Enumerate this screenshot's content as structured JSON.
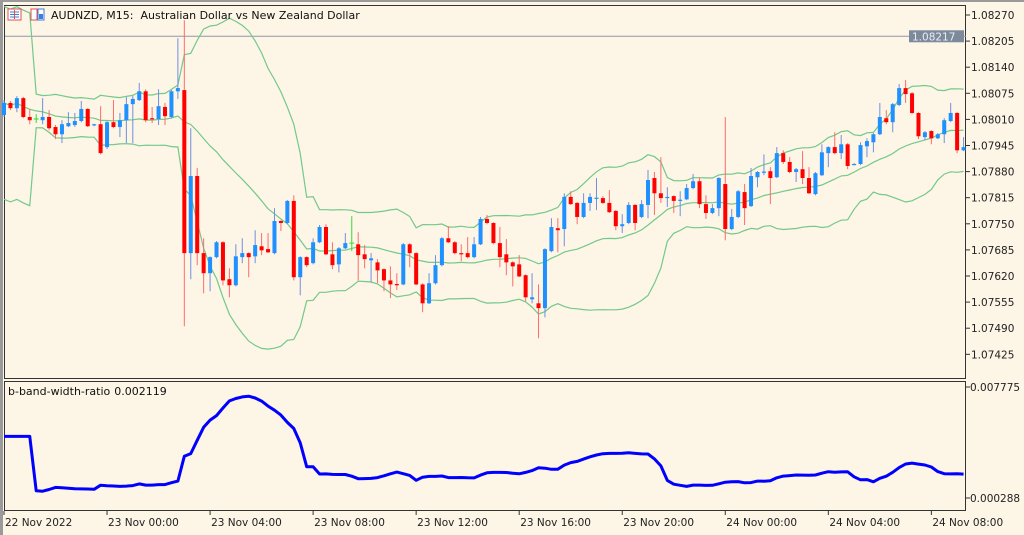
{
  "window": {
    "symbol_title": "AUDNZD, M15:  Australian Dollar vs New Zealand Dollar",
    "icons": [
      "chart-list-icon",
      "data-window-icon"
    ]
  },
  "colors": {
    "background": "#fdf5e6",
    "bull_body": "#1e90ff",
    "bear_body": "#ff0000",
    "bull_wick": "#6f8fe0",
    "bear_wick": "#ff6b6b",
    "doji": "#33dd33",
    "bands": "#72c98a",
    "indicator_line": "#0000ff",
    "hline": "#8f9aa8",
    "hline_label_bg": "#7d8a9c"
  },
  "chart_data": [
    {
      "type": "candlestick",
      "timeframe": "M15",
      "price_axis": {
        "ticks": [
          "1.08270",
          "1.08205",
          "1.08140",
          "1.08075",
          "1.08010",
          "1.07945",
          "1.07880",
          "1.07815",
          "1.07750",
          "1.07685",
          "1.07620",
          "1.07555",
          "1.07490",
          "1.07425"
        ],
        "range": [
          1.0738,
          1.083
        ]
      },
      "horizontal_line": {
        "value": "1.08217"
      },
      "overlay": {
        "indicator": "Bollinger Bands",
        "period": 20,
        "deviations": 2
      },
      "time_axis": {
        "labels": [
          "22 Nov 2022",
          "23 Nov 00:00",
          "23 Nov 04:00",
          "23 Nov 08:00",
          "23 Nov 12:00",
          "23 Nov 16:00",
          "23 Nov 20:00",
          "24 Nov 00:00",
          "24 Nov 04:00",
          "24 Nov 08:00"
        ],
        "label_bar_index": [
          0,
          16,
          32,
          48,
          64,
          80,
          96,
          112,
          128,
          144
        ]
      },
      "ohlc_columns": [
        "open",
        "high",
        "low",
        "close"
      ],
      "ohlc": [
        [
          1.08021,
          1.08058,
          1.08016,
          1.08051
        ],
        [
          1.08051,
          1.08056,
          1.08033,
          1.08038
        ],
        [
          1.08038,
          1.08068,
          1.08028,
          1.08063
        ],
        [
          1.08063,
          1.08066,
          1.08013,
          1.08016
        ],
        [
          1.08016,
          1.08036,
          1.07998,
          1.08008
        ],
        [
          1.08011,
          1.08023,
          1.08001,
          1.08011
        ],
        [
          1.08008,
          1.08063,
          1.07998,
          1.08016
        ],
        [
          1.08016,
          1.08033,
          1.07983,
          1.07988
        ],
        [
          1.07991,
          1.07996,
          1.07961,
          1.07973
        ],
        [
          1.07973,
          1.08008,
          1.07951,
          1.07998
        ],
        [
          1.07993,
          1.08028,
          1.07991,
          1.08001
        ],
        [
          1.07996,
          1.08026,
          1.07991,
          1.08006
        ],
        [
          1.08006,
          1.08056,
          1.08003,
          1.08036
        ],
        [
          1.08036,
          1.08038,
          1.07991,
          1.07993
        ],
        [
          1.07996,
          1.07999,
          1.07993,
          1.07998
        ],
        [
          1.07998,
          1.08043,
          1.07923,
          1.07926
        ],
        [
          1.07941,
          1.08006,
          1.07936,
          1.08003
        ],
        [
          1.08003,
          1.08058,
          1.07988,
          1.07991
        ],
        [
          1.07991,
          1.08026,
          1.07966,
          1.08008
        ],
        [
          1.08008,
          1.08066,
          1.07951,
          1.08048
        ],
        [
          1.08048,
          1.08068,
          1.07951,
          1.08061
        ],
        [
          1.08058,
          1.08101,
          1.08056,
          1.0808
        ],
        [
          1.0808,
          1.08085,
          1.08003,
          1.08008
        ],
        [
          1.08013,
          1.08041,
          1.08001,
          1.08011
        ],
        [
          1.08011,
          1.08085,
          1.07996,
          1.08043
        ],
        [
          1.08041,
          1.08051,
          1.07996,
          1.08018
        ],
        [
          1.08016,
          1.08083,
          1.08013,
          1.0808
        ],
        [
          1.0808,
          1.08212,
          1.08061,
          1.08088
        ],
        [
          1.08083,
          1.08257,
          1.07495,
          1.07677
        ],
        [
          1.07677,
          1.07988,
          1.07612,
          1.07869
        ],
        [
          1.07869,
          1.07889,
          1.07647,
          1.07677
        ],
        [
          1.07677,
          1.07714,
          1.07577,
          1.07627
        ],
        [
          1.07627,
          1.07669,
          1.07582,
          1.07667
        ],
        [
          1.07667,
          1.07707,
          1.07664,
          1.07704
        ],
        [
          1.07704,
          1.07707,
          1.07597,
          1.07609
        ],
        [
          1.07612,
          1.07639,
          1.07567,
          1.07597
        ],
        [
          1.07597,
          1.07699,
          1.07594,
          1.07669
        ],
        [
          1.07667,
          1.07714,
          1.07652,
          1.07677
        ],
        [
          1.07677,
          1.07679,
          1.07617,
          1.07667
        ],
        [
          1.07669,
          1.07734,
          1.07652,
          1.07697
        ],
        [
          1.07694,
          1.07727,
          1.07672,
          1.07684
        ],
        [
          1.07687,
          1.07727,
          1.07677,
          1.07679
        ],
        [
          1.07677,
          1.07789,
          1.07674,
          1.07757
        ],
        [
          1.07757,
          1.07759,
          1.07732,
          1.07752
        ],
        [
          1.07752,
          1.07809,
          1.07749,
          1.07807
        ],
        [
          1.07807,
          1.07821,
          1.07609,
          1.07617
        ],
        [
          1.07617,
          1.07669,
          1.07572,
          1.07667
        ],
        [
          1.07667,
          1.07669,
          1.07642,
          1.07647
        ],
        [
          1.07652,
          1.07714,
          1.07649,
          1.07704
        ],
        [
          1.07704,
          1.07747,
          1.07702,
          1.07742
        ],
        [
          1.07742,
          1.07749,
          1.07672,
          1.07674
        ],
        [
          1.07674,
          1.07704,
          1.07637,
          1.07647
        ],
        [
          1.07649,
          1.07692,
          1.07629,
          1.07689
        ],
        [
          1.07689,
          1.07727,
          1.07687,
          1.07702
        ],
        [
          1.07702,
          1.07769,
          1.07682,
          1.07702
        ],
        [
          1.07699,
          1.07729,
          1.07609,
          1.07672
        ],
        [
          1.07674,
          1.07697,
          1.07639,
          1.07662
        ],
        [
          1.07659,
          1.07677,
          1.07604,
          1.07664
        ],
        [
          1.07654,
          1.07662,
          1.07602,
          1.07634
        ],
        [
          1.07637,
          1.07639,
          1.07582,
          1.07609
        ],
        [
          1.07609,
          1.07644,
          1.07565,
          1.07599
        ],
        [
          1.076,
          1.07627,
          1.07585,
          1.07599
        ],
        [
          1.07599,
          1.07702,
          1.07597,
          1.07699
        ],
        [
          1.07699,
          1.07702,
          1.07642,
          1.07677
        ],
        [
          1.07677,
          1.07679,
          1.07597,
          1.07599
        ],
        [
          1.07599,
          1.07602,
          1.0753,
          1.07552
        ],
        [
          1.07552,
          1.07627,
          1.0755,
          1.07602
        ],
        [
          1.07602,
          1.07672,
          1.07599,
          1.07647
        ],
        [
          1.07647,
          1.07717,
          1.07644,
          1.07714
        ],
        [
          1.07714,
          1.07744,
          1.07702,
          1.07704
        ],
        [
          1.07704,
          1.07707,
          1.07674,
          1.07677
        ],
        [
          1.07677,
          1.07699,
          1.07657,
          1.07674
        ],
        [
          1.07677,
          1.07717,
          1.07664,
          1.07667
        ],
        [
          1.07667,
          1.07717,
          1.07664,
          1.07699
        ],
        [
          1.07699,
          1.07767,
          1.07697,
          1.07762
        ],
        [
          1.07762,
          1.07772,
          1.07749,
          1.07752
        ],
        [
          1.07752,
          1.07754,
          1.07699,
          1.07702
        ],
        [
          1.07702,
          1.07742,
          1.07642,
          1.07667
        ],
        [
          1.07674,
          1.07712,
          1.07622,
          1.07654
        ],
        [
          1.07654,
          1.07657,
          1.07594,
          1.07644
        ],
        [
          1.07649,
          1.07672,
          1.07617,
          1.07619
        ],
        [
          1.07622,
          1.07624,
          1.07557,
          1.07567
        ],
        [
          1.07562,
          1.07627,
          1.07552,
          1.07567
        ],
        [
          1.07552,
          1.07599,
          1.07465,
          1.0754
        ],
        [
          1.0754,
          1.07689,
          1.07517,
          1.07687
        ],
        [
          1.07682,
          1.07764,
          1.07679,
          1.07742
        ],
        [
          1.07739,
          1.07764,
          1.07679,
          1.07734
        ],
        [
          1.07737,
          1.07826,
          1.07694,
          1.07817
        ],
        [
          1.07817,
          1.07831,
          1.07797,
          1.07799
        ],
        [
          1.07802,
          1.07804,
          1.07749,
          1.07767
        ],
        [
          1.07767,
          1.07826,
          1.07764,
          1.07802
        ],
        [
          1.07802,
          1.07826,
          1.07782,
          1.07817
        ],
        [
          1.07814,
          1.07864,
          1.07784,
          1.07815
        ],
        [
          1.07814,
          1.07819,
          1.07799,
          1.07802
        ],
        [
          1.07802,
          1.07834,
          1.07777,
          1.07779
        ],
        [
          1.07782,
          1.07784,
          1.07734,
          1.07744
        ],
        [
          1.07744,
          1.07774,
          1.07727,
          1.07749
        ],
        [
          1.07752,
          1.07804,
          1.07749,
          1.07797
        ],
        [
          1.07797,
          1.07799,
          1.07734,
          1.07752
        ],
        [
          1.07767,
          1.07809,
          1.07764,
          1.07799
        ],
        [
          1.07797,
          1.07884,
          1.07764,
          1.07859
        ],
        [
          1.07864,
          1.07879,
          1.07772,
          1.07826
        ],
        [
          1.07826,
          1.07916,
          1.07802,
          1.07814
        ],
        [
          1.07816,
          1.07841,
          1.07792,
          1.07817
        ],
        [
          1.07819,
          1.07821,
          1.07777,
          1.07807
        ],
        [
          1.07809,
          1.07831,
          1.07769,
          1.0781
        ],
        [
          1.07811,
          1.07849,
          1.07809,
          1.07839
        ],
        [
          1.07839,
          1.07874,
          1.07836,
          1.07856
        ],
        [
          1.07856,
          1.07866,
          1.07789,
          1.07799
        ],
        [
          1.07799,
          1.07821,
          1.07762,
          1.07777
        ],
        [
          1.07777,
          1.07799,
          1.07774,
          1.07789
        ],
        [
          1.07789,
          1.07866,
          1.07769,
          1.07864
        ],
        [
          1.07849,
          1.08016,
          1.07709,
          1.07737
        ],
        [
          1.07737,
          1.07787,
          1.07734,
          1.07767
        ],
        [
          1.07767,
          1.07834,
          1.07764,
          1.07831
        ],
        [
          1.07829,
          1.07849,
          1.07747,
          1.07789
        ],
        [
          1.07794,
          1.07889,
          1.07792,
          1.07869
        ],
        [
          1.07866,
          1.07881,
          1.07841,
          1.07879
        ],
        [
          1.07879,
          1.07923,
          1.07871,
          1.0788
        ],
        [
          1.07881,
          1.07891,
          1.07799,
          1.07864
        ],
        [
          1.07866,
          1.07941,
          1.07864,
          1.07926
        ],
        [
          1.07926,
          1.07933,
          1.07899,
          1.07904
        ],
        [
          1.07904,
          1.07916,
          1.07876,
          1.07879
        ],
        [
          1.07879,
          1.07889,
          1.07854,
          1.07886
        ],
        [
          1.07886,
          1.07931,
          1.07849,
          1.07864
        ],
        [
          1.07864,
          1.07891,
          1.07824,
          1.07826
        ],
        [
          1.07824,
          1.07879,
          1.07821,
          1.07876
        ],
        [
          1.07871,
          1.07948,
          1.07869,
          1.07928
        ],
        [
          1.07926,
          1.07943,
          1.07891,
          1.07941
        ],
        [
          1.07941,
          1.07978,
          1.07923,
          1.07926
        ],
        [
          1.07926,
          1.07971,
          1.07911,
          1.07948
        ],
        [
          1.07948,
          1.07951,
          1.07886,
          1.07894
        ],
        [
          1.07898,
          1.07901,
          1.07896,
          1.07899
        ],
        [
          1.07899,
          1.07953,
          1.07896,
          1.07946
        ],
        [
          1.07943,
          1.07963,
          1.07916,
          1.07956
        ],
        [
          1.07953,
          1.07976,
          1.07928,
          1.07973
        ],
        [
          1.07973,
          1.08051,
          1.07971,
          1.08016
        ],
        [
          1.08013,
          1.08033,
          1.07998,
          1.08003
        ],
        [
          1.08003,
          1.08051,
          1.07978,
          1.08048
        ],
        [
          1.08046,
          1.08098,
          1.08043,
          1.08088
        ],
        [
          1.08088,
          1.08108,
          1.08051,
          1.08073
        ],
        [
          1.08075,
          1.08078,
          1.08023,
          1.08026
        ],
        [
          1.08026,
          1.08028,
          1.07961,
          1.07968
        ],
        [
          1.07966,
          1.07981,
          1.07958,
          1.07978
        ],
        [
          1.07981,
          1.07983,
          1.07948,
          1.07963
        ],
        [
          1.07963,
          1.07976,
          1.07961,
          1.07973
        ],
        [
          1.07973,
          1.08013,
          1.07951,
          1.08008
        ],
        [
          1.08006,
          1.08051,
          1.08003,
          1.08026
        ],
        [
          1.08026,
          1.08028,
          1.07926,
          1.07933
        ],
        [
          1.07933,
          1.07966,
          1.07931,
          1.07941
        ]
      ]
    },
    {
      "type": "line",
      "label": "b-band-width-ratio",
      "current_value": "0.002119",
      "formula": "(upper band - lower band) / middle band",
      "y_ticks": [
        "0.007775",
        "0.000288"
      ],
      "range": [
        0.000288,
        0.007775
      ]
    }
  ]
}
